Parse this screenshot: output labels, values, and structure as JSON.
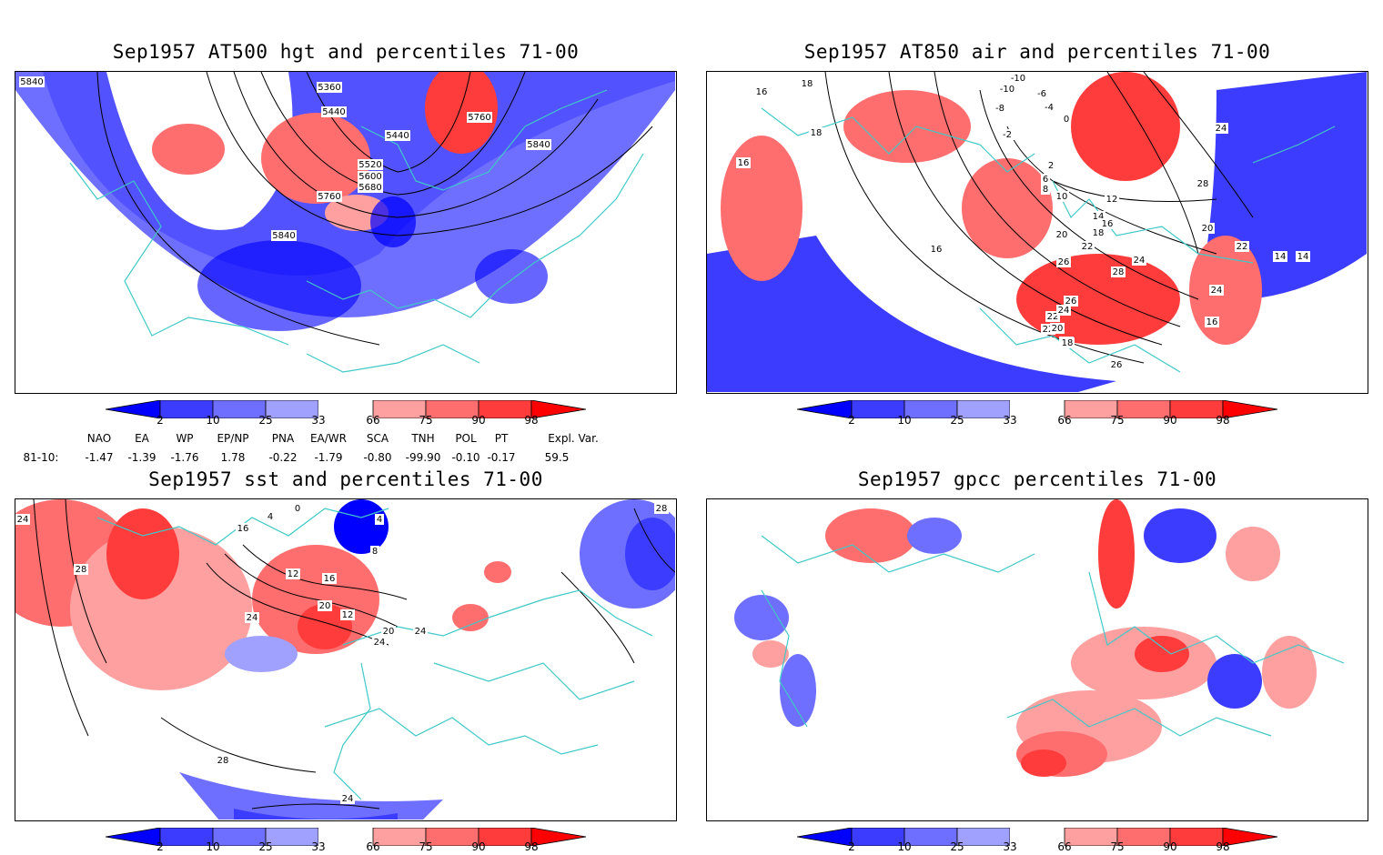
{
  "panels": [
    {
      "title": "Sep1957 AT500 hgt and percentiles 71-00",
      "contour_labels": [
        "5840",
        "5360",
        "5440",
        "5760",
        "5440",
        "5520",
        "5600",
        "5680",
        "5760",
        "5840",
        "5840"
      ]
    },
    {
      "title": "Sep1957 AT850 air and percentiles 71-00",
      "contour_labels": [
        "18",
        "16",
        "18",
        "16",
        "-10",
        "-10",
        "-6",
        "-8",
        "-4",
        "0",
        "-2",
        "2",
        "6",
        "8",
        "10",
        "12",
        "14",
        "16",
        "18",
        "20",
        "22",
        "24",
        "26",
        "28",
        "22",
        "24",
        "26",
        "28",
        "20",
        "22",
        "24",
        "26",
        "18",
        "16",
        "14",
        "22",
        "20",
        "16",
        "18",
        "24",
        "14"
      ]
    },
    {
      "title": "Sep1957 sst and percentiles 71-00",
      "contour_labels": [
        "24",
        "28",
        "16",
        "0",
        "4",
        "4",
        "8",
        "12",
        "16",
        "20",
        "24",
        "20",
        "24",
        "12",
        "24",
        "28",
        "28",
        "24"
      ]
    },
    {
      "title": "Sep1957 gpcc percentiles 71-00",
      "contour_labels": []
    }
  ],
  "colorbar": {
    "labels": [
      "2",
      "10",
      "25",
      "33",
      "66",
      "75",
      "90",
      "98"
    ],
    "colors": [
      "#0000ff",
      "#3c3cff",
      "#6e6eff",
      "#a0a0ff",
      "#ffffff",
      "#ffa0a0",
      "#ff6e6e",
      "#ff3c3c",
      "#ff0000"
    ]
  },
  "indices": {
    "headers": [
      "NAO",
      "EA",
      "WP",
      "EP/NP",
      "PNA",
      "EA/WR",
      "SCA",
      "TNH",
      "POL",
      "PT",
      "Expl. Var."
    ],
    "row_label": "81-10:",
    "values": [
      "-1.47",
      "-1.39",
      "-1.76",
      "1.78",
      "-0.22",
      "-1.79",
      "-0.80",
      "-99.90",
      "-0.10",
      "-0.17",
      "59.5"
    ]
  },
  "colors": {
    "blue_strong": "#3c3cff",
    "blue_mid": "#6e6eff",
    "blue_light": "#a0a0ff",
    "red_light": "#ffa0a0",
    "red_mid": "#ff6e6e",
    "red_strong": "#ff3c3c",
    "coast": "#40c8c8"
  }
}
